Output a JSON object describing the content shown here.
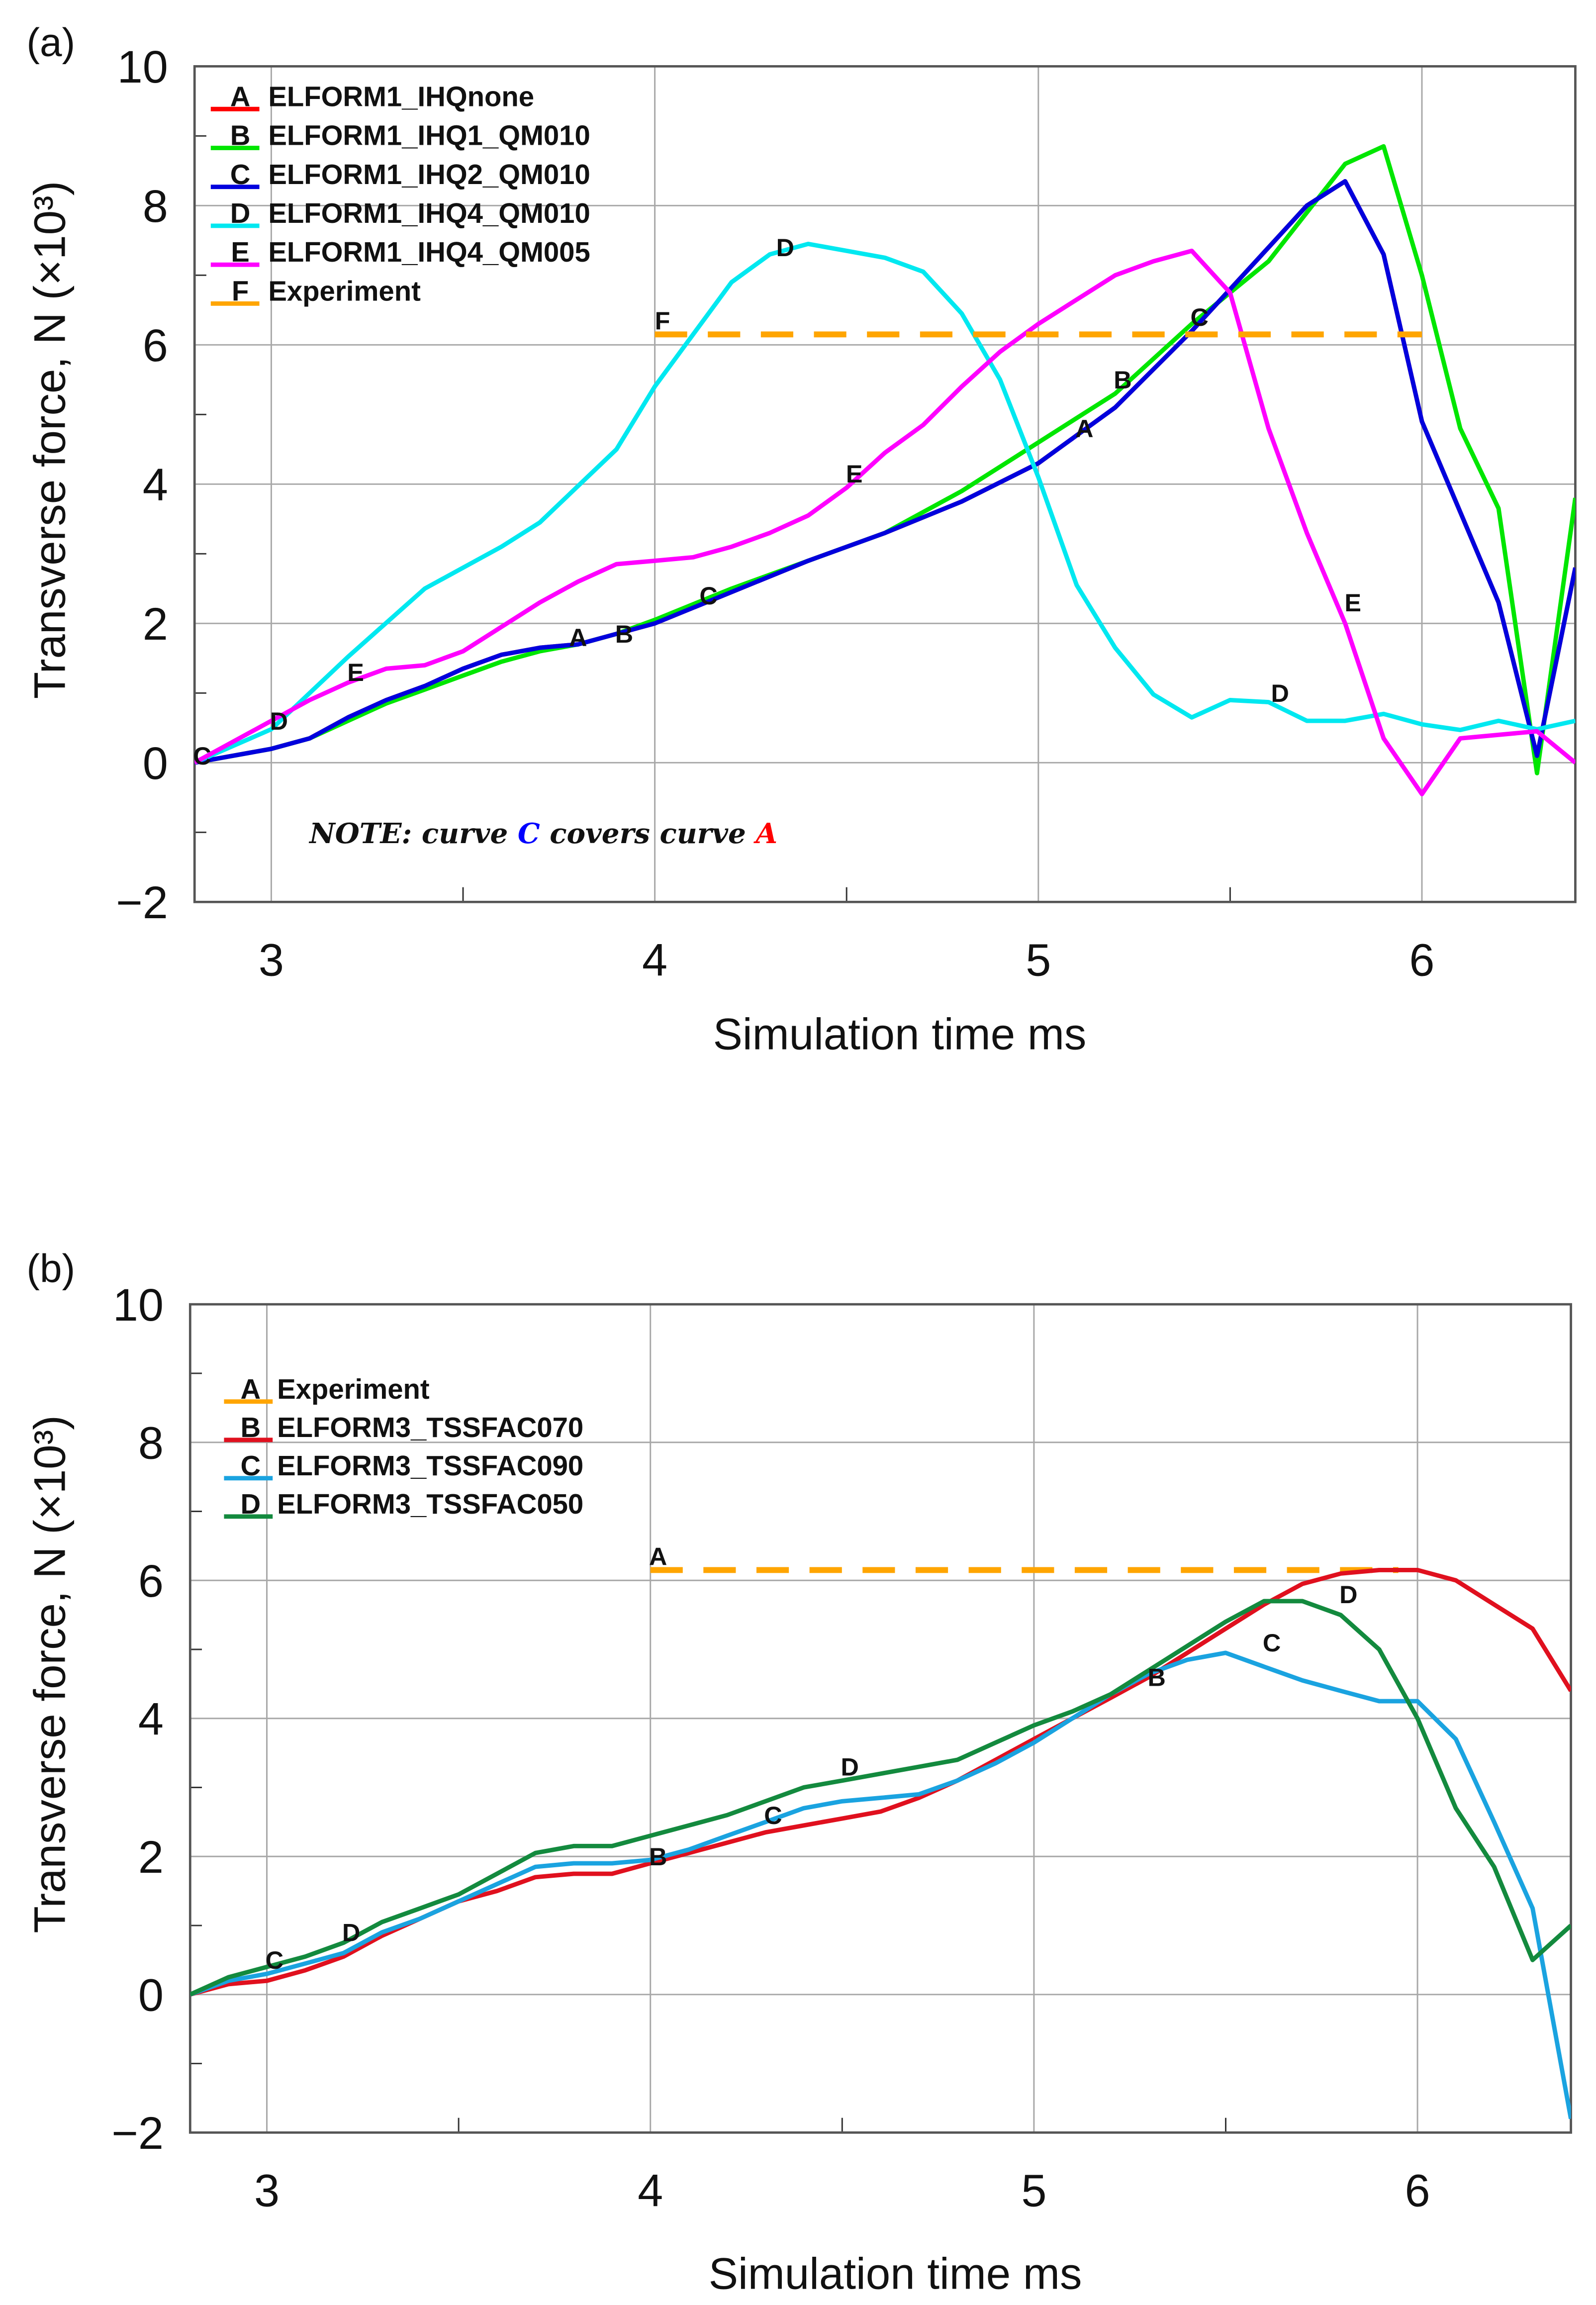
{
  "chart_data": [
    {
      "type": "line",
      "panel_label": "(a)",
      "xlabel": "Simulation time ms",
      "ylabel": "Transverse force, N (×10³)",
      "xlim": [
        2.8,
        6.4
      ],
      "ylim": [
        -2,
        10
      ],
      "xticks": [
        3,
        4,
        5,
        6
      ],
      "xtick_labels": [
        "3",
        "4",
        "5",
        "6"
      ],
      "yticks": [
        -2,
        0,
        2,
        4,
        6,
        8,
        10
      ],
      "ytick_labels": [
        "−2",
        "0",
        "2",
        "4",
        "6",
        "8",
        "10"
      ],
      "grid": true,
      "legend_position": "top-left",
      "note": {
        "prefix": "NOTE",
        "sep": ": curve ",
        "c": "C",
        "mid": " covers curve ",
        "a": "A",
        "c_color": "#0000ff",
        "a_color": "#ff0000"
      },
      "series": [
        {
          "letter": "A",
          "name": "ELFORM1_IHQnone",
          "color": "#ff0000",
          "dashed": false,
          "x": [
            2.8,
            3.0,
            3.1,
            3.2,
            3.3,
            3.4,
            3.5,
            3.6,
            3.7,
            3.8,
            3.9,
            4.0,
            4.2,
            4.4,
            4.6,
            4.8,
            5.0,
            5.2,
            5.4,
            5.6,
            5.7,
            5.8,
            5.9,
            6.0,
            6.1,
            6.2,
            6.3,
            6.4
          ],
          "y": [
            0,
            0.2,
            0.35,
            0.65,
            0.9,
            1.1,
            1.35,
            1.55,
            1.65,
            1.7,
            1.85,
            2.0,
            2.45,
            2.9,
            3.3,
            3.75,
            4.3,
            5.1,
            6.2,
            7.4,
            8.0,
            8.35,
            7.3,
            4.9,
            3.6,
            2.3,
            0.1,
            2.8
          ],
          "markers": [
            [
              3.8,
              1.8
            ],
            [
              5.12,
              4.8
            ]
          ]
        },
        {
          "letter": "B",
          "name": "ELFORM1_IHQ1_QM010",
          "color": "#00e600",
          "dashed": false,
          "x": [
            2.8,
            3.0,
            3.1,
            3.2,
            3.3,
            3.4,
            3.5,
            3.6,
            3.7,
            3.8,
            3.9,
            4.0,
            4.2,
            4.4,
            4.6,
            4.8,
            5.0,
            5.2,
            5.4,
            5.6,
            5.7,
            5.8,
            5.9,
            6.0,
            6.1,
            6.2,
            6.3,
            6.4
          ],
          "y": [
            0,
            0.2,
            0.35,
            0.6,
            0.85,
            1.05,
            1.25,
            1.45,
            1.6,
            1.7,
            1.85,
            2.05,
            2.5,
            2.9,
            3.3,
            3.9,
            4.6,
            5.3,
            6.3,
            7.2,
            7.9,
            8.6,
            8.85,
            7.0,
            4.8,
            3.65,
            -0.15,
            3.8
          ],
          "markers": [
            [
              3.92,
              1.85
            ],
            [
              5.22,
              5.5
            ]
          ]
        },
        {
          "letter": "C",
          "name": "ELFORM1_IHQ2_QM010",
          "color": "#0000dd",
          "dashed": false,
          "x": [
            2.8,
            3.0,
            3.1,
            3.2,
            3.3,
            3.4,
            3.5,
            3.6,
            3.7,
            3.8,
            3.9,
            4.0,
            4.2,
            4.4,
            4.6,
            4.8,
            5.0,
            5.2,
            5.4,
            5.6,
            5.7,
            5.8,
            5.9,
            6.0,
            6.1,
            6.2,
            6.3,
            6.4
          ],
          "y": [
            0,
            0.2,
            0.35,
            0.65,
            0.9,
            1.1,
            1.35,
            1.55,
            1.65,
            1.7,
            1.85,
            2.0,
            2.45,
            2.9,
            3.3,
            3.75,
            4.3,
            5.1,
            6.2,
            7.4,
            8.0,
            8.35,
            7.3,
            4.9,
            3.6,
            2.3,
            0.1,
            2.8
          ],
          "markers": [
            [
              2.82,
              0.1
            ],
            [
              4.14,
              2.4
            ],
            [
              5.42,
              6.4
            ]
          ]
        },
        {
          "letter": "D",
          "name": "ELFORM1_IHQ4_QM010",
          "color": "#00e8f0",
          "dashed": false,
          "x": [
            2.8,
            3.0,
            3.2,
            3.4,
            3.6,
            3.7,
            3.9,
            4.0,
            4.2,
            4.3,
            4.4,
            4.6,
            4.7,
            4.8,
            4.9,
            5.0,
            5.1,
            5.2,
            5.3,
            5.4,
            5.5,
            5.6,
            5.7,
            5.8,
            5.9,
            6.0,
            6.1,
            6.2,
            6.3,
            6.4
          ],
          "y": [
            0,
            0.48,
            1.52,
            2.5,
            3.1,
            3.45,
            4.5,
            5.4,
            6.9,
            7.3,
            7.45,
            7.25,
            7.05,
            6.45,
            5.5,
            4.1,
            2.55,
            1.65,
            0.98,
            0.65,
            0.9,
            0.87,
            0.6,
            0.6,
            0.7,
            0.55,
            0.47,
            0.6,
            0.48,
            0.6
          ],
          "markers": [
            [
              3.02,
              0.6
            ],
            [
              4.34,
              7.4
            ],
            [
              5.63,
              1.0
            ]
          ]
        },
        {
          "letter": "E",
          "name": "ELFORM1_IHQ4_QM005",
          "color": "#ff00ff",
          "dashed": false,
          "x": [
            2.8,
            3.0,
            3.1,
            3.2,
            3.3,
            3.4,
            3.5,
            3.6,
            3.7,
            3.8,
            3.9,
            4.0,
            4.1,
            4.2,
            4.3,
            4.4,
            4.5,
            4.6,
            4.7,
            4.8,
            4.9,
            5.0,
            5.1,
            5.2,
            5.3,
            5.4,
            5.5,
            5.6,
            5.7,
            5.8,
            5.9,
            6.0,
            6.1,
            6.2,
            6.3,
            6.4
          ],
          "y": [
            0,
            0.6,
            0.9,
            1.15,
            1.35,
            1.4,
            1.6,
            1.95,
            2.3,
            2.6,
            2.85,
            2.9,
            2.95,
            3.1,
            3.3,
            3.55,
            3.95,
            4.45,
            4.85,
            5.4,
            5.9,
            6.3,
            6.65,
            7.0,
            7.2,
            7.35,
            6.75,
            4.8,
            3.3,
            2.0,
            0.35,
            -0.45,
            0.35,
            0.4,
            0.45,
            0
          ],
          "markers": [
            [
              3.22,
              1.3
            ],
            [
              4.52,
              4.15
            ],
            [
              5.82,
              2.3
            ]
          ]
        },
        {
          "letter": "F",
          "name": "Experiment",
          "color": "#ffa500",
          "dashed": true,
          "x": [
            4.0,
            6.0
          ],
          "y": [
            6.15,
            6.15
          ],
          "markers": [
            [
              4.02,
              6.35
            ]
          ]
        }
      ]
    },
    {
      "type": "line",
      "panel_label": "(b)",
      "xlabel": "Simulation time ms",
      "ylabel": "Transverse force, N (×10³)",
      "xlim": [
        2.8,
        6.4
      ],
      "ylim": [
        -2,
        10
      ],
      "xticks": [
        3,
        4,
        5,
        6
      ],
      "xtick_labels": [
        "3",
        "4",
        "5",
        "6"
      ],
      "yticks": [
        -2,
        0,
        2,
        4,
        6,
        8,
        10
      ],
      "ytick_labels": [
        "−2",
        "0",
        "2",
        "4",
        "6",
        "8",
        "10"
      ],
      "grid": true,
      "legend_position": "top-left",
      "series": [
        {
          "letter": "A",
          "name": "Experiment",
          "color": "#ffa500",
          "dashed": true,
          "x": [
            4.0,
            5.95
          ],
          "y": [
            6.15,
            6.15
          ],
          "markers": [
            [
              4.02,
              6.35
            ]
          ]
        },
        {
          "letter": "B",
          "name": "ELFORM3_TSSFAC070",
          "color": "#e0101e",
          "dashed": false,
          "x": [
            2.8,
            2.9,
            3.0,
            3.1,
            3.2,
            3.3,
            3.4,
            3.5,
            3.6,
            3.7,
            3.8,
            3.9,
            4.0,
            4.1,
            4.2,
            4.3,
            4.4,
            4.5,
            4.6,
            4.7,
            4.8,
            4.9,
            5.0,
            5.1,
            5.2,
            5.3,
            5.4,
            5.5,
            5.6,
            5.7,
            5.8,
            5.9,
            6.0,
            6.1,
            6.2,
            6.3,
            6.4
          ],
          "y": [
            0,
            0.15,
            0.2,
            0.35,
            0.55,
            0.85,
            1.1,
            1.35,
            1.5,
            1.7,
            1.75,
            1.75,
            1.9,
            2.05,
            2.2,
            2.35,
            2.45,
            2.55,
            2.65,
            2.85,
            3.1,
            3.4,
            3.7,
            4.0,
            4.3,
            4.6,
            4.95,
            5.3,
            5.65,
            5.95,
            6.1,
            6.15,
            6.15,
            6.0,
            5.65,
            5.3,
            4.4
          ],
          "markers": [
            [
              4.02,
              2.0
            ],
            [
              5.32,
              4.6
            ]
          ]
        },
        {
          "letter": "C",
          "name": "ELFORM3_TSSFAC090",
          "color": "#1aa3e0",
          "dashed": false,
          "x": [
            2.8,
            2.9,
            3.0,
            3.1,
            3.2,
            3.3,
            3.4,
            3.5,
            3.6,
            3.7,
            3.8,
            3.9,
            4.0,
            4.1,
            4.2,
            4.3,
            4.4,
            4.5,
            4.6,
            4.7,
            4.8,
            4.9,
            5.0,
            5.1,
            5.2,
            5.3,
            5.4,
            5.5,
            5.6,
            5.7,
            5.8,
            5.9,
            6.0,
            6.1,
            6.2,
            6.3,
            6.4
          ],
          "y": [
            0,
            0.2,
            0.3,
            0.45,
            0.6,
            0.9,
            1.1,
            1.35,
            1.6,
            1.85,
            1.9,
            1.9,
            1.95,
            2.1,
            2.3,
            2.5,
            2.7,
            2.8,
            2.85,
            2.9,
            3.1,
            3.35,
            3.65,
            4.0,
            4.35,
            4.65,
            4.85,
            4.95,
            4.75,
            4.55,
            4.4,
            4.25,
            4.25,
            3.7,
            2.5,
            1.25,
            -1.8
          ],
          "markers": [
            [
              3.02,
              0.5
            ],
            [
              4.32,
              2.6
            ],
            [
              5.62,
              5.1
            ]
          ]
        },
        {
          "letter": "D",
          "name": "ELFORM3_TSSFAC050",
          "color": "#138a3e",
          "dashed": false,
          "x": [
            2.8,
            2.9,
            3.0,
            3.1,
            3.2,
            3.3,
            3.4,
            3.5,
            3.6,
            3.7,
            3.8,
            3.9,
            4.0,
            4.1,
            4.2,
            4.3,
            4.4,
            4.5,
            4.6,
            4.7,
            4.8,
            4.9,
            5.0,
            5.1,
            5.2,
            5.3,
            5.4,
            5.5,
            5.6,
            5.7,
            5.8,
            5.9,
            6.0,
            6.1,
            6.2,
            6.3,
            6.4
          ],
          "y": [
            0,
            0.25,
            0.4,
            0.55,
            0.75,
            1.05,
            1.25,
            1.45,
            1.75,
            2.05,
            2.15,
            2.15,
            2.3,
            2.45,
            2.6,
            2.8,
            3.0,
            3.1,
            3.2,
            3.3,
            3.4,
            3.65,
            3.9,
            4.1,
            4.35,
            4.7,
            5.05,
            5.4,
            5.7,
            5.7,
            5.5,
            5.0,
            4.0,
            2.7,
            1.85,
            0.5,
            1.0
          ],
          "markers": [
            [
              3.22,
              0.9
            ],
            [
              4.52,
              3.3
            ],
            [
              5.82,
              5.8
            ]
          ]
        }
      ]
    }
  ]
}
